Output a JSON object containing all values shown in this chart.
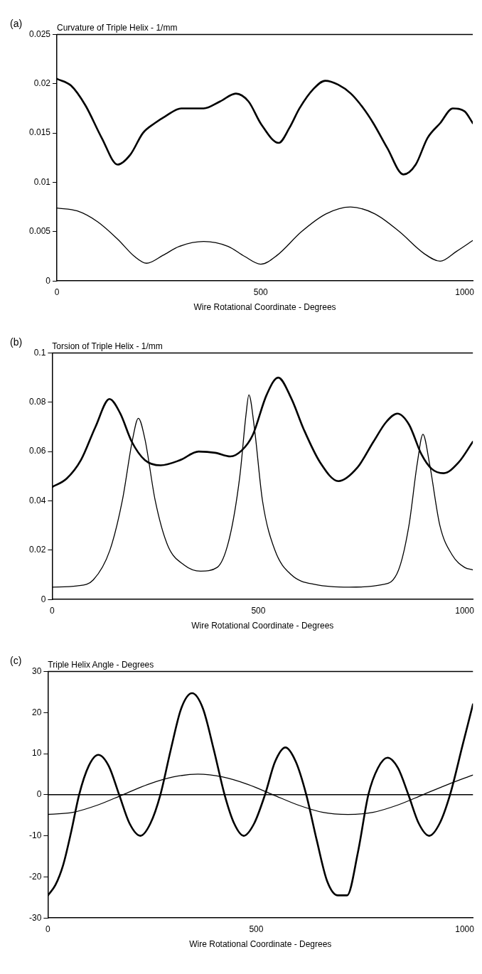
{
  "chart_data": [
    {
      "type": "line",
      "title": "Curvature of Triple Helix - 1/mm",
      "xlabel": "Wire Rotational Coordinate - Degrees",
      "annotations": [
        "(a)"
      ],
      "xlim": [
        0,
        1020
      ],
      "xticks": [
        0,
        500,
        1000
      ],
      "ylim": [
        0,
        0.025
      ],
      "yticks": [
        0,
        0.005,
        0.01,
        0.015,
        0.02,
        0.025
      ],
      "grid": false,
      "legend": false,
      "marker": "none",
      "line_style": "solid",
      "series": [
        {
          "color": "#000000",
          "x": [
            0,
            35,
            70,
            110,
            149,
            180,
            211,
            240,
            266,
            305,
            360,
            400,
            439,
            470,
            501,
            544,
            570,
            595,
            630,
            658,
            690,
            721,
            750,
            776,
            810,
            850,
            880,
            909,
            940,
            971,
            1000,
            1020
          ],
          "values": [
            0.0205,
            0.0198,
            0.0178,
            0.0145,
            0.0118,
            0.0128,
            0.015,
            0.016,
            0.0167,
            0.0175,
            0.0175,
            0.0182,
            0.019,
            0.0182,
            0.0159,
            0.014,
            0.0155,
            0.0175,
            0.0195,
            0.0203,
            0.0199,
            0.019,
            0.0176,
            0.016,
            0.0135,
            0.0108,
            0.0118,
            0.0145,
            0.016,
            0.0175,
            0.0172,
            0.016
          ]
        },
        {
          "color": "#000000",
          "x": [
            0,
            50,
            100,
            150,
            190,
            220,
            260,
            300,
            360,
            420,
            460,
            500,
            540,
            600,
            660,
            720,
            780,
            840,
            900,
            940,
            980,
            1020
          ],
          "values": [
            0.0074,
            0.0071,
            0.006,
            0.0042,
            0.0025,
            0.0018,
            0.0026,
            0.0035,
            0.004,
            0.0035,
            0.0025,
            0.0017,
            0.0026,
            0.005,
            0.0068,
            0.0075,
            0.0068,
            0.005,
            0.0028,
            0.002,
            0.003,
            0.0041
          ]
        }
      ]
    },
    {
      "type": "line",
      "title": "Torsion of Triple Helix - 1/mm",
      "xlabel": "Wire Rotational Coordinate - Degrees",
      "annotations": [
        "(b)"
      ],
      "xlim": [
        0,
        1020
      ],
      "xticks": [
        0,
        500,
        1000
      ],
      "ylim": [
        0,
        0.1
      ],
      "yticks": [
        0,
        0.02,
        0.04,
        0.06,
        0.08,
        0.1
      ],
      "grid": false,
      "legend": false,
      "marker": "none",
      "line_style": "solid",
      "series": [
        {
          "color": "#000000",
          "x": [
            0,
            35,
            70,
            105,
            139,
            165,
            193,
            225,
            263,
            310,
            355,
            395,
            432,
            460,
            486,
            520,
            548,
            580,
            610,
            650,
            694,
            740,
            779,
            810,
            837,
            865,
            895,
            920,
            949,
            985,
            1020
          ],
          "values": [
            0.0456,
            0.049,
            0.0566,
            0.07,
            0.0813,
            0.0755,
            0.064,
            0.0565,
            0.0544,
            0.0565,
            0.06,
            0.0595,
            0.058,
            0.0605,
            0.0666,
            0.083,
            0.09,
            0.0815,
            0.069,
            0.0555,
            0.048,
            0.0535,
            0.064,
            0.072,
            0.0754,
            0.071,
            0.059,
            0.053,
            0.0512,
            0.0555,
            0.064
          ]
        },
        {
          "color": "#000000",
          "x": [
            0,
            60,
            100,
            140,
            170,
            195,
            209,
            225,
            250,
            280,
            320,
            360,
            400,
            430,
            455,
            470,
            477,
            490,
            510,
            540,
            580,
            640,
            720,
            800,
            840,
            865,
            885,
            899,
            915,
            940,
            970,
            1000,
            1020
          ],
          "values": [
            0.005,
            0.0055,
            0.008,
            0.02,
            0.04,
            0.065,
            0.0735,
            0.065,
            0.04,
            0.022,
            0.014,
            0.0115,
            0.013,
            0.025,
            0.05,
            0.075,
            0.083,
            0.07,
            0.04,
            0.02,
            0.01,
            0.006,
            0.005,
            0.006,
            0.012,
            0.03,
            0.055,
            0.067,
            0.055,
            0.03,
            0.018,
            0.013,
            0.012
          ]
        }
      ]
    },
    {
      "type": "line",
      "title": "Triple Helix Angle - Degrees",
      "xlabel": "Wire Rotational Coordinate - Degrees",
      "annotations": [
        "(c)"
      ],
      "xlim": [
        0,
        1020
      ],
      "xticks": [
        0,
        500,
        1000
      ],
      "ylim": [
        -30,
        30
      ],
      "yticks": [
        -30,
        -20,
        -10,
        0,
        10,
        20,
        30
      ],
      "grid": false,
      "legend": false,
      "marker": "none",
      "line_style": "solid",
      "ref_lines": [
        {
          "axis": "y",
          "value": 0,
          "color": "#000000"
        }
      ],
      "series": [
        {
          "color": "#000000",
          "x": [
            0,
            18,
            37,
            56,
            75,
            98,
            121,
            146,
            171,
            196,
            222,
            246,
            270,
            295,
            320,
            346,
            372,
            398,
            424,
            447,
            470,
            495,
            521,
            545,
            570,
            595,
            620,
            645,
            670,
            696,
            718,
            744,
            769,
            792,
            815,
            840,
            865,
            890,
            915,
            940,
            965,
            995,
            1020
          ],
          "values": [
            -24.5,
            -22,
            -17,
            -9,
            0,
            7,
            9.7,
            7,
            0,
            -7,
            -10,
            -7,
            0,
            11,
            21,
            24.7,
            21,
            11,
            0,
            -7,
            -10,
            -7,
            0,
            8,
            11.5,
            8,
            0,
            -11,
            -21,
            -24.5,
            -24.5,
            -14,
            0,
            6.5,
            9,
            6.5,
            0,
            -7,
            -10,
            -7,
            0,
            12,
            22
          ]
        },
        {
          "color": "#000000",
          "x": [
            0,
            60,
            120,
            180,
            240,
            300,
            360,
            420,
            480,
            540,
            600,
            660,
            720,
            780,
            840,
            900,
            960,
            1020
          ],
          "values": [
            -4.8,
            -4.3,
            -2.5,
            0,
            2.5,
            4.3,
            5,
            4.3,
            2.5,
            0,
            -2.5,
            -4.3,
            -4.8,
            -4.3,
            -2.5,
            0,
            2.5,
            4.8
          ]
        }
      ]
    }
  ]
}
